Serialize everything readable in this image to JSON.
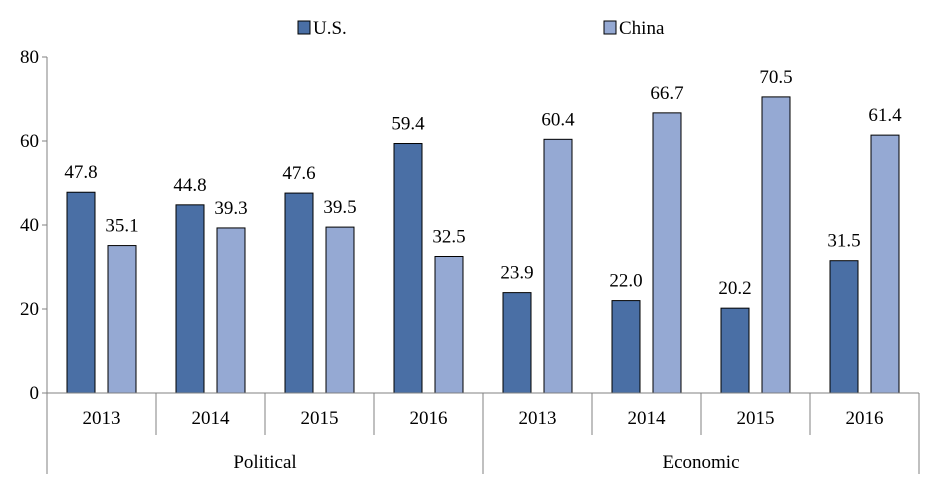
{
  "chart_data": {
    "type": "bar",
    "legend_position": "top-center",
    "grid": false,
    "ylim": [
      0,
      80
    ],
    "yticks": [
      0,
      20,
      40,
      60,
      80
    ],
    "groups": [
      {
        "label": "Political",
        "categories": [
          "2013",
          "2014",
          "2015",
          "2016"
        ]
      },
      {
        "label": "Economic",
        "categories": [
          "2013",
          "2014",
          "2015",
          "2016"
        ]
      }
    ],
    "series": [
      {
        "name": "U.S.",
        "color": "#4A6FA5",
        "values": [
          47.8,
          44.8,
          47.6,
          59.4,
          23.9,
          22.0,
          20.2,
          31.5
        ]
      },
      {
        "name": "China",
        "color": "#95A9D3",
        "values": [
          35.1,
          39.3,
          39.5,
          32.5,
          60.4,
          66.7,
          70.5,
          61.4
        ]
      }
    ]
  }
}
